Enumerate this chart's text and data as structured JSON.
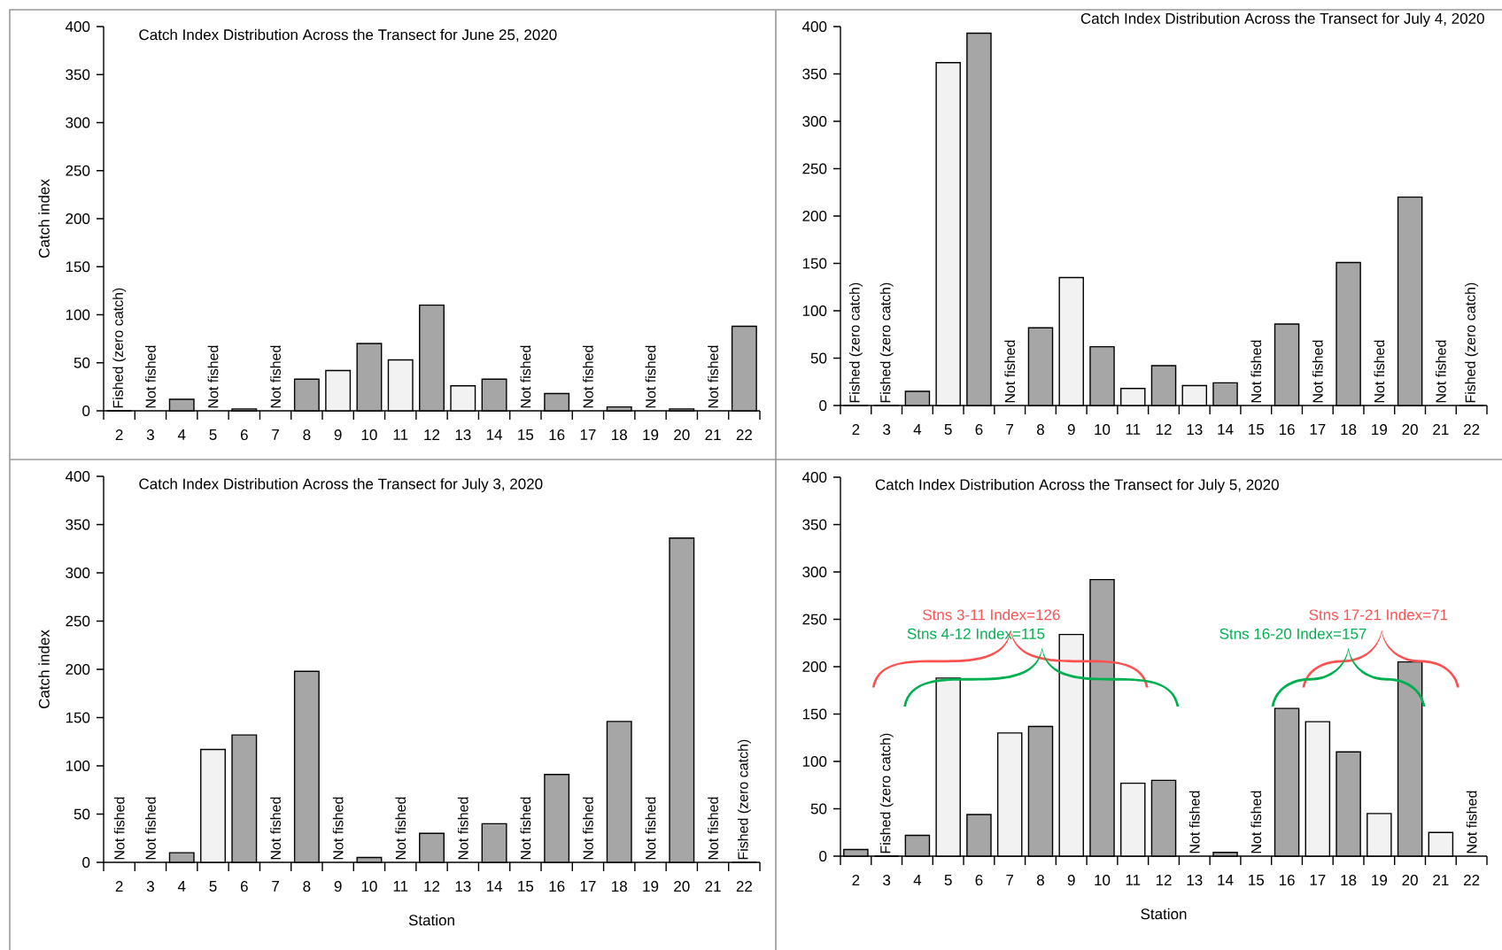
{
  "chart_data": [
    {
      "type": "bar",
      "title": "Catch Index Distribution Across the Transect for June 25, 2020",
      "ylabel": "Catch index",
      "categories": [
        "2",
        "3",
        "4",
        "5",
        "6",
        "7",
        "8",
        "9",
        "10",
        "11",
        "12",
        "13",
        "14",
        "15",
        "16",
        "17",
        "18",
        "19",
        "20",
        "21",
        "22"
      ],
      "values": [
        0,
        null,
        12,
        null,
        2,
        null,
        33,
        42,
        70,
        53,
        110,
        26,
        33,
        null,
        18,
        null,
        4,
        null,
        2,
        null,
        88
      ],
      "colors": [
        "#a6a6a6",
        "#a6a6a6",
        "#a6a6a6",
        "#a6a6a6",
        "#a6a6a6",
        "#a6a6a6",
        "#a6a6a6",
        "#f2f2f2",
        "#a6a6a6",
        "#f2f2f2",
        "#a6a6a6",
        "#f2f2f2",
        "#a6a6a6",
        "#a6a6a6",
        "#a6a6a6",
        "#a6a6a6",
        "#a6a6a6",
        "#a6a6a6",
        "#a6a6a6",
        "#a6a6a6",
        "#a6a6a6"
      ],
      "ylim": [
        0,
        400
      ],
      "yticks": [
        0,
        50,
        100,
        150,
        200,
        250,
        300,
        350,
        400
      ],
      "annotations": [
        "Fished (zero catch)",
        "Not fished",
        "Not fished",
        "Not fished",
        "Not fished",
        "Not fished",
        "Not fished",
        "Not fished"
      ]
    },
    {
      "type": "bar",
      "title": "Catch Index Distribution Across the Transect for July 4, 2020",
      "categories": [
        "2",
        "3",
        "4",
        "5",
        "6",
        "7",
        "8",
        "9",
        "10",
        "11",
        "12",
        "13",
        "14",
        "15",
        "16",
        "17",
        "18",
        "19",
        "20",
        "21",
        "22"
      ],
      "values": [
        0,
        0,
        15,
        362,
        393,
        null,
        82,
        135,
        62,
        18,
        42,
        21,
        24,
        null,
        86,
        null,
        151,
        null,
        220,
        null,
        0
      ],
      "colors": [
        "#a6a6a6",
        "#a6a6a6",
        "#a6a6a6",
        "#f2f2f2",
        "#a6a6a6",
        "#a6a6a6",
        "#a6a6a6",
        "#f2f2f2",
        "#a6a6a6",
        "#f2f2f2",
        "#a6a6a6",
        "#f2f2f2",
        "#a6a6a6",
        "#a6a6a6",
        "#a6a6a6",
        "#a6a6a6",
        "#a6a6a6",
        "#a6a6a6",
        "#a6a6a6",
        "#a6a6a6",
        "#a6a6a6"
      ],
      "ylim": [
        0,
        400
      ],
      "yticks": [
        0,
        50,
        100,
        150,
        200,
        250,
        300,
        350,
        400
      ],
      "annotations": [
        "Fished (zero catch)",
        "Fished (zero catch)",
        "Not fished",
        "Not fished",
        "Not fished",
        "Not fished",
        "Not fished",
        "Fished (zero catch)"
      ]
    },
    {
      "type": "bar",
      "title": "Catch Index Distribution Across the Transect for July 3, 2020",
      "ylabel": "Catch index",
      "xlabel": "Station",
      "categories": [
        "2",
        "3",
        "4",
        "5",
        "6",
        "7",
        "8",
        "9",
        "10",
        "11",
        "12",
        "13",
        "14",
        "15",
        "16",
        "17",
        "18",
        "19",
        "20",
        "21",
        "22"
      ],
      "values": [
        null,
        null,
        10,
        117,
        132,
        null,
        198,
        null,
        5,
        null,
        30,
        null,
        40,
        null,
        91,
        null,
        146,
        null,
        336,
        null,
        0
      ],
      "colors": [
        "#a6a6a6",
        "#a6a6a6",
        "#a6a6a6",
        "#f2f2f2",
        "#a6a6a6",
        "#a6a6a6",
        "#a6a6a6",
        "#a6a6a6",
        "#a6a6a6",
        "#a6a6a6",
        "#a6a6a6",
        "#a6a6a6",
        "#a6a6a6",
        "#a6a6a6",
        "#a6a6a6",
        "#a6a6a6",
        "#a6a6a6",
        "#a6a6a6",
        "#a6a6a6",
        "#a6a6a6",
        "#a6a6a6"
      ],
      "ylim": [
        0,
        400
      ],
      "yticks": [
        0,
        50,
        100,
        150,
        200,
        250,
        300,
        350,
        400
      ],
      "annotations": [
        "Not fished",
        "Not fished",
        "Not fished",
        "Not fished",
        "Not fished",
        "Not fished",
        "Not fished",
        "Not fished",
        "Not fished",
        "Not fished",
        "Fished (zero catch)"
      ]
    },
    {
      "type": "bar",
      "title": "Catch Index Distribution Across the Transect for July 5, 2020",
      "xlabel": "Station",
      "categories": [
        "2",
        "3",
        "4",
        "5",
        "6",
        "7",
        "8",
        "9",
        "10",
        "11",
        "12",
        "13",
        "14",
        "15",
        "16",
        "17",
        "18",
        "19",
        "20",
        "21",
        "22"
      ],
      "values": [
        7,
        0,
        22,
        188,
        44,
        130,
        137,
        234,
        292,
        77,
        80,
        null,
        4,
        null,
        156,
        142,
        110,
        45,
        205,
        25,
        null
      ],
      "colors": [
        "#a6a6a6",
        "#a6a6a6",
        "#a6a6a6",
        "#f2f2f2",
        "#a6a6a6",
        "#f2f2f2",
        "#a6a6a6",
        "#f2f2f2",
        "#a6a6a6",
        "#f2f2f2",
        "#a6a6a6",
        "#a6a6a6",
        "#a6a6a6",
        "#a6a6a6",
        "#a6a6a6",
        "#f2f2f2",
        "#a6a6a6",
        "#f2f2f2",
        "#a6a6a6",
        "#f2f2f2",
        "#a6a6a6"
      ],
      "ylim": [
        0,
        400
      ],
      "yticks": [
        0,
        50,
        100,
        150,
        200,
        250,
        300,
        350,
        400
      ],
      "annotations": [
        "Fished (zero catch)",
        "Not fished",
        "Not fished",
        "Not fished",
        "Stns 3-11 Index=126",
        "Stns 4-12 Index=115",
        "Stns 17-21 Index=71",
        "Stns 16-20 Index=157"
      ]
    }
  ]
}
